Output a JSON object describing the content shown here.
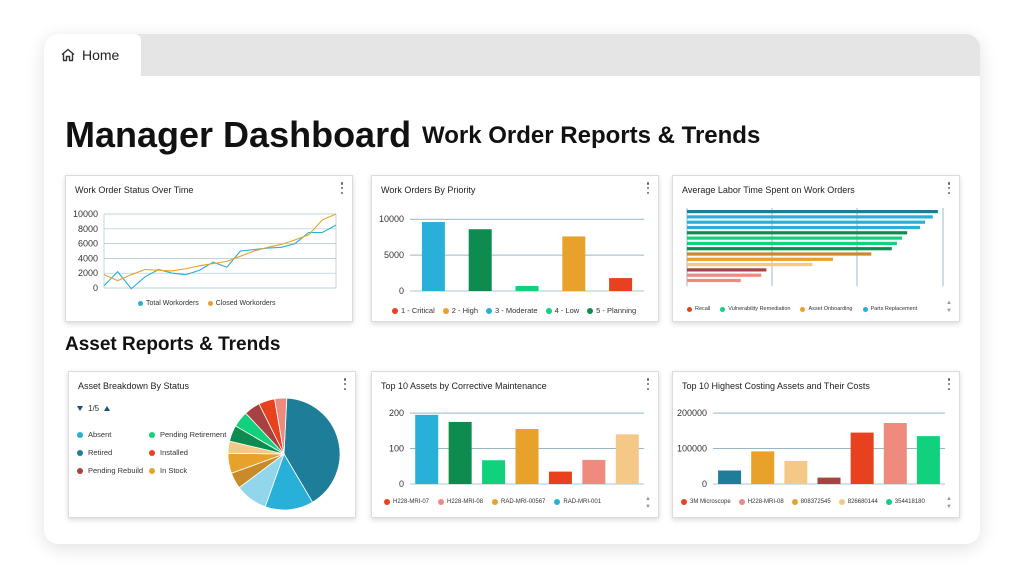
{
  "tab": {
    "label": "Home"
  },
  "header": {
    "title": "Manager Dashboard",
    "subtitle": "Work Order Reports & Trends"
  },
  "section2": {
    "title": "Asset Reports & Trends"
  },
  "cards": {
    "status_over_time": {
      "title": "Work Order Status Over Time"
    },
    "by_priority": {
      "title": "Work Orders By Priority"
    },
    "labor_time": {
      "title": "Average Labor Time Spent on Work Orders"
    },
    "asset_breakdown": {
      "title": "Asset Breakdown By Status",
      "page": "1/5"
    },
    "top10_corrective": {
      "title": "Top 10 Assets by Corrective Maintenance"
    },
    "top10_costing": {
      "title": "Top 10 Highest Costing Assets and Their Costs"
    }
  },
  "colors": {
    "blue": "#29b0d8",
    "orange": "#e8a12a",
    "red": "#e8411f",
    "darkgreen": "#0e8c4f",
    "green": "#11d17c",
    "teal": "#1e7d99",
    "darkred": "#a84141",
    "salmon": "#ef8a7f",
    "peach": "#f4c987"
  },
  "chart_data": [
    {
      "id": "status_over_time",
      "type": "line",
      "x": [
        1,
        2,
        3,
        4,
        5,
        6,
        7,
        8,
        9,
        10,
        11,
        12,
        13,
        14,
        15,
        16,
        17,
        18
      ],
      "ylim": [
        0,
        10000
      ],
      "yticks": [
        "10000",
        "8000",
        "6000",
        "4000",
        "2000",
        "0"
      ],
      "series": [
        {
          "name": "Total Workorders",
          "color": "#29b0d8",
          "values": [
            300,
            2200,
            -100,
            1500,
            2500,
            2000,
            1800,
            2400,
            3500,
            2800,
            5000,
            5200,
            5400,
            5500,
            6000,
            7500,
            7500,
            8500
          ]
        },
        {
          "name": "Closed Workorders",
          "color": "#e8a12a",
          "values": [
            1800,
            1000,
            1800,
            2500,
            2400,
            2300,
            2600,
            3000,
            3300,
            3600,
            4300,
            5000,
            5500,
            5900,
            6500,
            7200,
            9200,
            10000
          ]
        }
      ]
    },
    {
      "id": "by_priority",
      "type": "bar",
      "ylim": [
        0,
        11000
      ],
      "yticks": [
        "10000",
        "5000",
        "0"
      ],
      "categories": [
        "1 - Critical",
        "2 - High",
        "3 - Moderate",
        "4 - Low",
        "5 - Planning"
      ],
      "values": [
        9600,
        8600,
        700,
        7600,
        1800
      ],
      "bar_colors": [
        "#29b0d8",
        "#0e8c4f",
        "#11d17c",
        "#e8a12a",
        "#e8411f"
      ],
      "legend": [
        {
          "label": "1 - Critical",
          "color": "#e8411f"
        },
        {
          "label": "2 - High",
          "color": "#e8a12a"
        },
        {
          "label": "3 - Moderate",
          "color": "#29b0d8"
        },
        {
          "label": "4 - Low",
          "color": "#11d17c"
        },
        {
          "label": "5 - Planning",
          "color": "#0e8c4f"
        }
      ]
    },
    {
      "id": "labor_time",
      "type": "bar",
      "orientation": "horizontal",
      "xlim": [
        0,
        100
      ],
      "values": [
        98,
        96,
        93,
        91,
        86,
        84,
        82,
        80,
        72,
        57,
        49,
        31,
        29,
        21
      ],
      "bar_colors": [
        "#1e7d99",
        "#29b0d8",
        "#29b0d8",
        "#29b0d8",
        "#0e8c4f",
        "#11d17c",
        "#11d17c",
        "#0e8c4f",
        "#c98a2a",
        "#e8a12a",
        "#f4c987",
        "#a84141",
        "#ef8a7f",
        "#ef8a7f"
      ],
      "legend": [
        {
          "label": "Recall",
          "color": "#e8411f"
        },
        {
          "label": "Vulnerability Remediation",
          "color": "#11d17c"
        },
        {
          "label": "Asset Onboarding",
          "color": "#e8a12a"
        },
        {
          "label": "Parts Replacement",
          "color": "#29b0d8"
        }
      ]
    },
    {
      "id": "asset_breakdown",
      "type": "pie",
      "labels": [
        "Absent",
        "Pending Retirement",
        "Retired",
        "Installed",
        "Pending Rebuild",
        "In Stock"
      ],
      "legend_colors": [
        "#29b0d8",
        "#11d17c",
        "#1e7d99",
        "#e8411f",
        "#a84141",
        "#e8a12a"
      ],
      "slices": [
        {
          "value": 35,
          "color": "#1e7d99"
        },
        {
          "value": 12,
          "color": "#29b0d8"
        },
        {
          "value": 8,
          "color": "#91d6ea"
        },
        {
          "value": 4,
          "color": "#c98a2a"
        },
        {
          "value": 5,
          "color": "#e8a12a"
        },
        {
          "value": 3,
          "color": "#f4c987"
        },
        {
          "value": 4,
          "color": "#0e8c4f"
        },
        {
          "value": 4,
          "color": "#11d17c"
        },
        {
          "value": 4,
          "color": "#a84141"
        },
        {
          "value": 4,
          "color": "#e8411f"
        },
        {
          "value": 3,
          "color": "#ef8a7f"
        }
      ]
    },
    {
      "id": "top10_corrective",
      "type": "bar",
      "ylim": [
        0,
        220
      ],
      "yticks": [
        "200",
        "100",
        "0"
      ],
      "values": [
        195,
        175,
        67,
        155,
        35,
        68,
        140
      ],
      "bar_colors": [
        "#29b0d8",
        "#0e8c4f",
        "#11d17c",
        "#e8a12a",
        "#e8411f",
        "#ef8a7f",
        "#f4c987"
      ],
      "legend": [
        {
          "label": "H228-MRI-07",
          "color": "#e8411f"
        },
        {
          "label": "H228-MRI-08",
          "color": "#ef8a7f"
        },
        {
          "label": "RAD-MRI-00567",
          "color": "#e8a12a"
        },
        {
          "label": "RAD-MRI-001",
          "color": "#29b0d8"
        }
      ]
    },
    {
      "id": "top10_costing",
      "type": "bar",
      "ylim": [
        0,
        220000
      ],
      "yticks": [
        "200000",
        "100000",
        "0"
      ],
      "values": [
        38000,
        92000,
        65000,
        18000,
        145000,
        172000,
        135000
      ],
      "bar_colors": [
        "#1e7d99",
        "#e8a12a",
        "#f4c987",
        "#a84141",
        "#e8411f",
        "#ef8a7f",
        "#11d17c"
      ],
      "legend": [
        {
          "label": "3M Microscope",
          "color": "#e8411f"
        },
        {
          "label": "H228-MRI-08",
          "color": "#ef8a7f"
        },
        {
          "label": "808372545",
          "color": "#e8a12a"
        },
        {
          "label": "826680144",
          "color": "#f4c987"
        },
        {
          "label": "354418180",
          "color": "#11d17c"
        }
      ]
    }
  ]
}
